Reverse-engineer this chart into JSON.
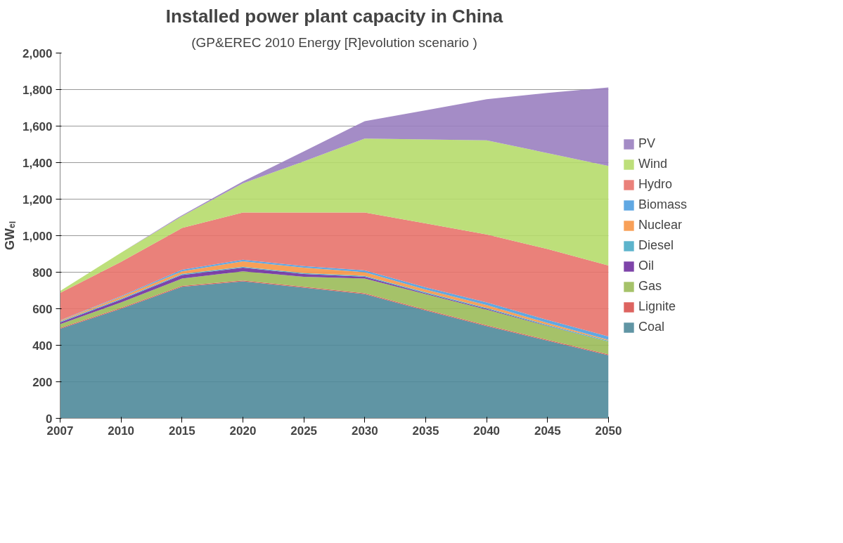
{
  "chart_data": {
    "type": "area",
    "stacked": true,
    "title": "Installed power plant capacity in China",
    "subtitle": "(GP&EREC 2010 Energy [R]evolution scenario )",
    "ylabel": "GWₑₗ",
    "categories": [
      "2007",
      "2010",
      "2015",
      "2020",
      "2025",
      "2030",
      "2035",
      "2040",
      "2045",
      "2050"
    ],
    "ylim": [
      0,
      2000
    ],
    "yticks": [
      {
        "value": 0,
        "label": "0"
      },
      {
        "value": 200,
        "label": "200"
      },
      {
        "value": 400,
        "label": "400"
      },
      {
        "value": 600,
        "label": "600"
      },
      {
        "value": 800,
        "label": "800"
      },
      {
        "value": 1000,
        "label": "1,000"
      },
      {
        "value": 1200,
        "label": "1,200"
      },
      {
        "value": 1400,
        "label": "1,400"
      },
      {
        "value": 1600,
        "label": "1,600"
      },
      {
        "value": 1800,
        "label": "1,800"
      },
      {
        "value": 2000,
        "label": "2,000"
      }
    ],
    "grid": "y",
    "legend": "right",
    "series": [
      {
        "name": "Coal",
        "color": "#4f8a9a",
        "values": [
          490,
          600,
          720,
          750,
          715,
          680,
          590,
          505,
          425,
          345
        ]
      },
      {
        "name": "Lignite",
        "color": "#d9534f",
        "values": [
          5,
          5,
          5,
          5,
          5,
          5,
          5,
          5,
          5,
          5
        ]
      },
      {
        "name": "Gas",
        "color": "#9bbb59",
        "values": [
          20,
          30,
          40,
          50,
          55,
          80,
          85,
          85,
          75,
          70
        ]
      },
      {
        "name": "Oil",
        "color": "#7030a0",
        "values": [
          10,
          15,
          20,
          20,
          15,
          10,
          5,
          5,
          2,
          0
        ]
      },
      {
        "name": "Diesel",
        "color": "#4bacc6",
        "values": [
          5,
          5,
          5,
          5,
          5,
          5,
          5,
          5,
          5,
          5
        ]
      },
      {
        "name": "Nuclear",
        "color": "#f79646",
        "values": [
          5,
          10,
          15,
          30,
          30,
          20,
          15,
          15,
          10,
          5
        ]
      },
      {
        "name": "Biomass",
        "color": "#4f9fe0",
        "values": [
          2,
          4,
          8,
          8,
          9,
          10,
          12,
          15,
          16,
          18
        ]
      },
      {
        "name": "Hydro",
        "color": "#e8736b",
        "values": [
          150,
          188,
          229,
          259,
          293,
          317,
          350,
          372,
          389,
          389
        ]
      },
      {
        "name": "Wind",
        "color": "#b6dc6b",
        "values": [
          10,
          50,
          65,
          160,
          280,
          405,
          460,
          515,
          525,
          545
        ]
      },
      {
        "name": "PV",
        "color": "#9a7fc0",
        "values": [
          0,
          0,
          5,
          10,
          55,
          95,
          160,
          225,
          330,
          430
        ]
      }
    ]
  }
}
